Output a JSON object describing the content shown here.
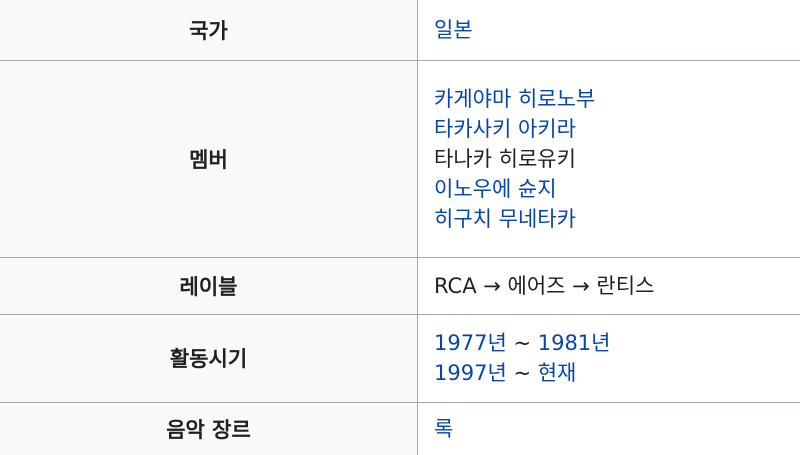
{
  "colors": {
    "link": "#0645ad",
    "text": "#202122",
    "label_bg": "#f8f9fa",
    "border": "#a2a9b1"
  },
  "infobox": {
    "country": {
      "label": "국가",
      "value": "일본"
    },
    "members": {
      "label": "멤버",
      "list": [
        {
          "name": "카게야마 히로노부",
          "linked": true
        },
        {
          "name": "타카사키 아키라",
          "linked": true
        },
        {
          "name": "타나카 히로유키",
          "linked": false
        },
        {
          "name": "이노우에 슌지",
          "linked": true
        },
        {
          "name": "히구치 무네타카",
          "linked": true
        }
      ]
    },
    "record_label": {
      "label": "레이블",
      "value": "RCA → 에어즈 → 란티스"
    },
    "active_years": {
      "label": "활동시기",
      "periods": [
        {
          "start": "1977년",
          "separator": " ~ ",
          "end": "1981년"
        },
        {
          "start": "1997년",
          "separator": " ~ ",
          "end": "현재"
        }
      ]
    },
    "genre": {
      "label": "음악 장르",
      "value": "록"
    }
  }
}
